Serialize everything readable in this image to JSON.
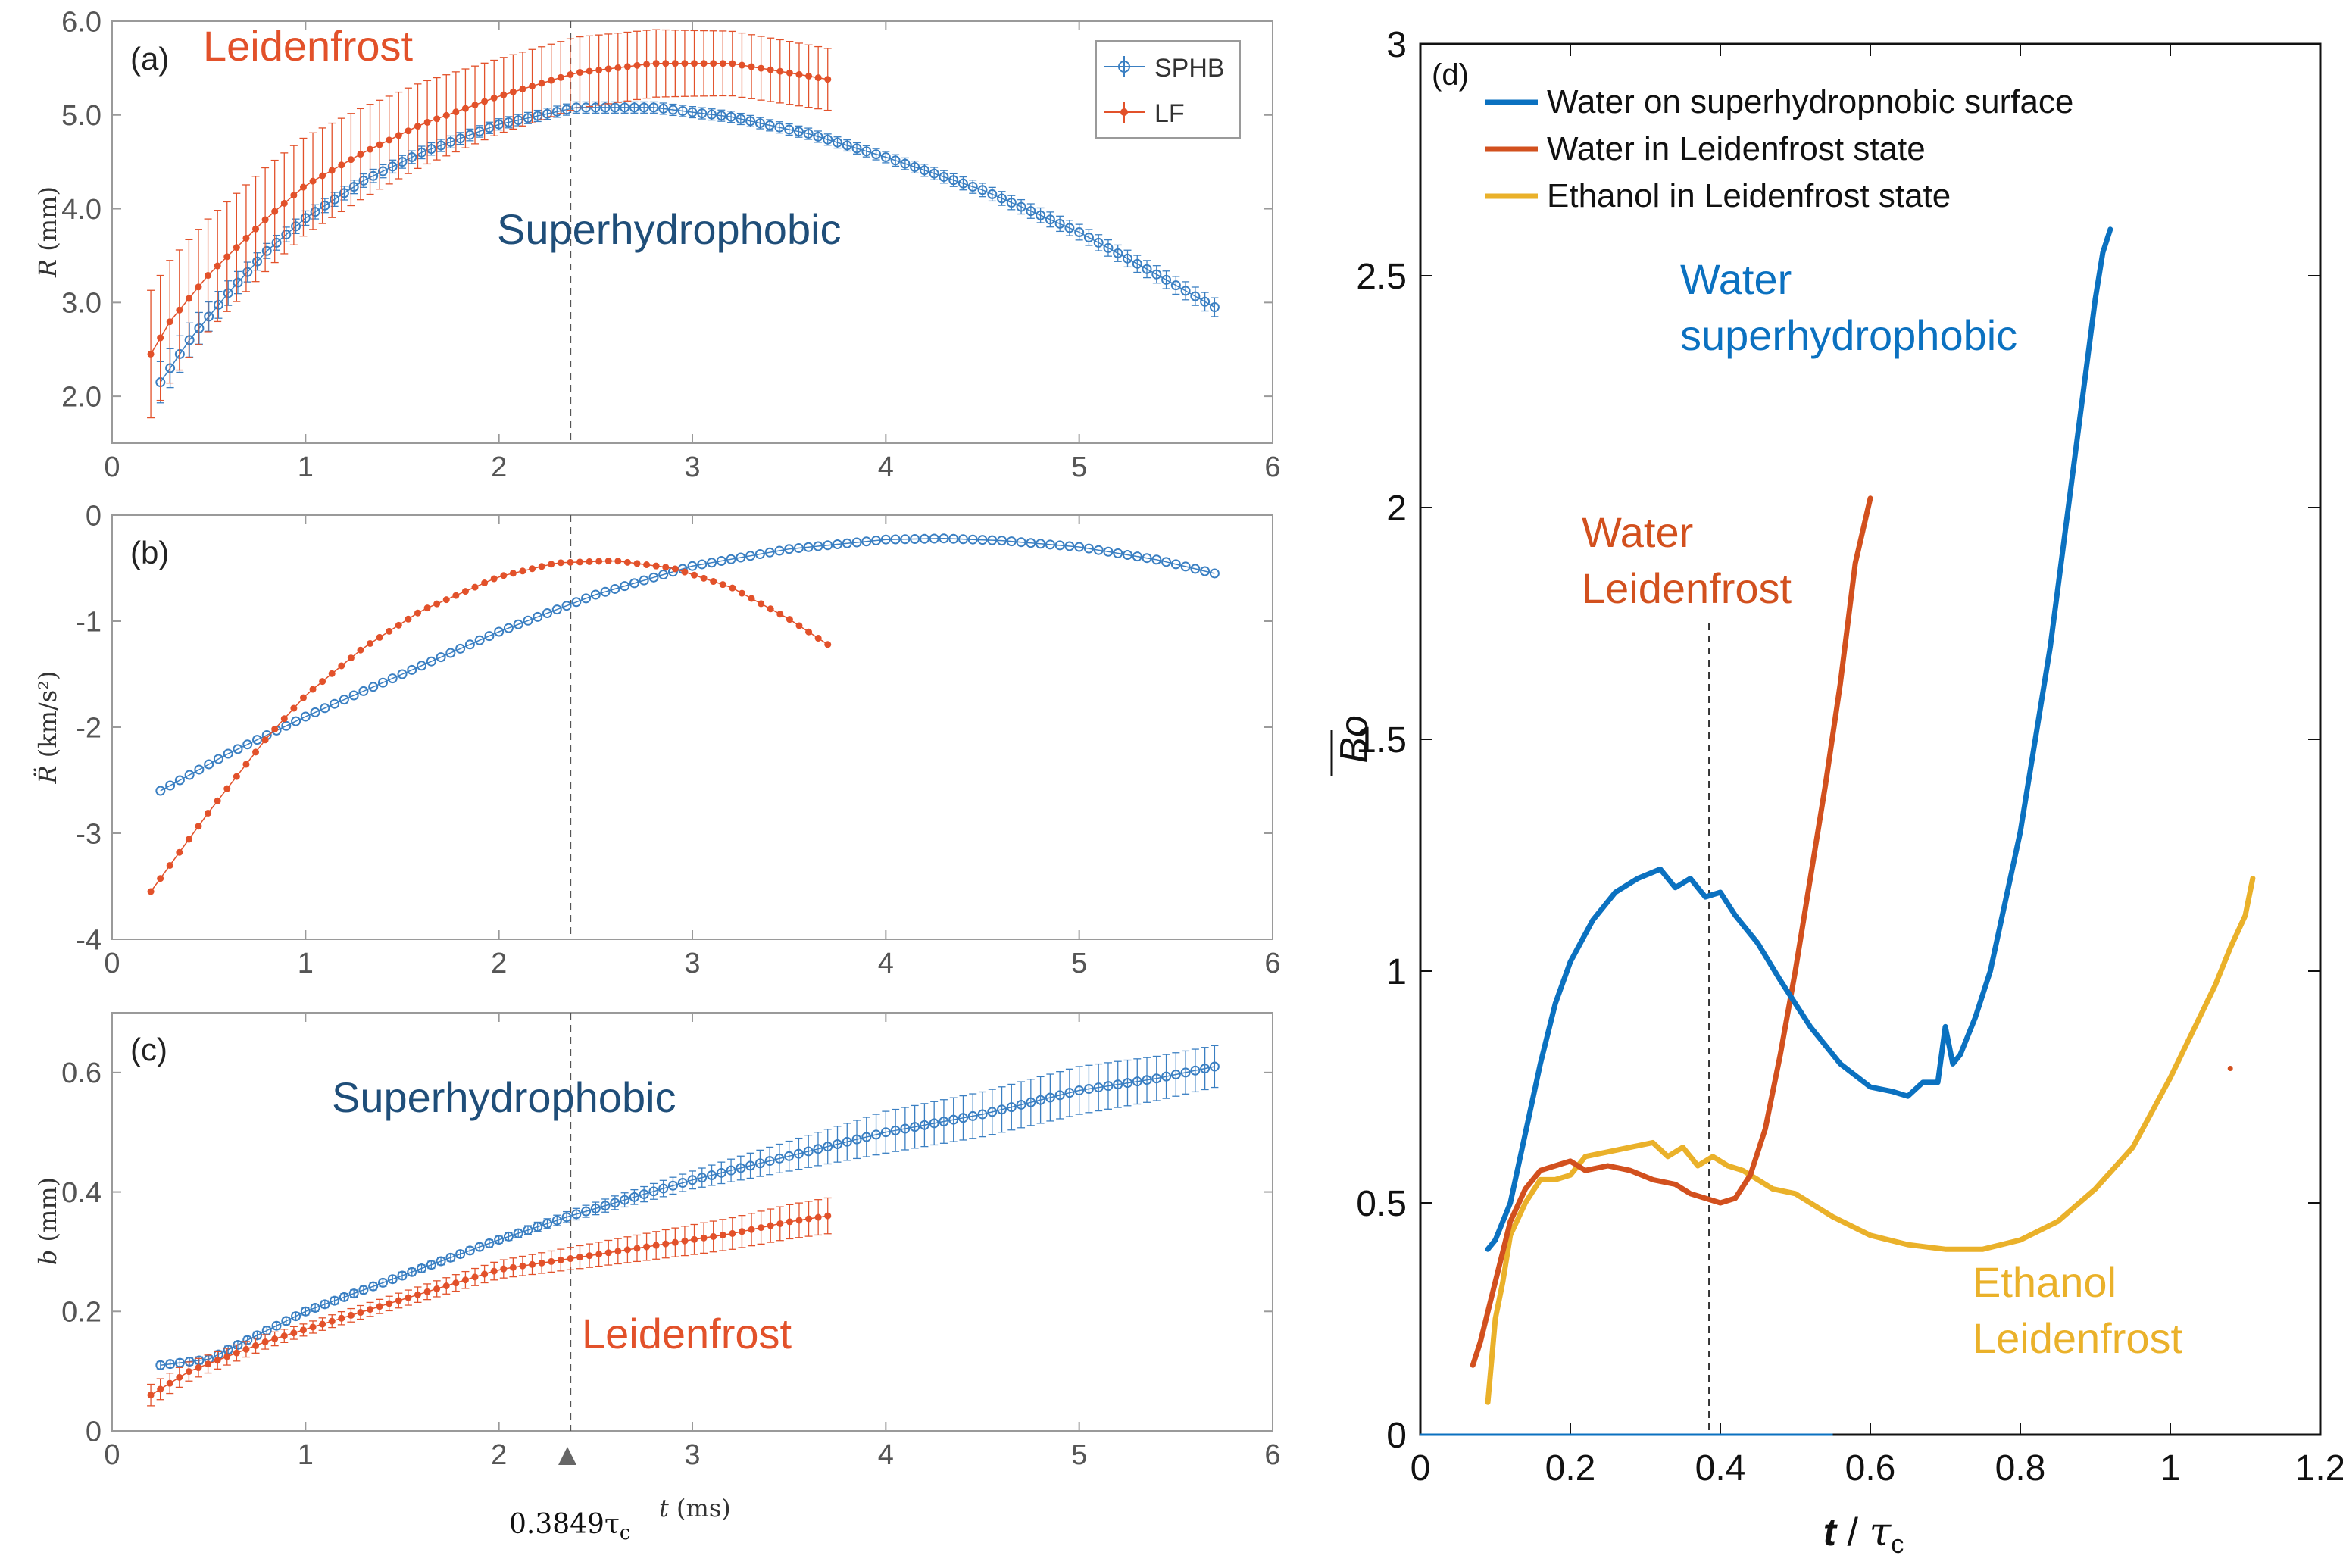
{
  "colors": {
    "sphb_blue": "#3a7fc2",
    "lf_orange": "#e2512a",
    "annot_blue": "#1f4e79",
    "annot_orange": "#e2512a",
    "d_blue": "#0b71c0",
    "d_orange": "#d2501e",
    "d_yellow": "#eab12a",
    "axis": "#9a9a9a",
    "tick_text": "#555555"
  },
  "chart_data": [
    {
      "id": "a",
      "type": "scatter",
      "panel_label": "(a)",
      "xlabel": "",
      "ylabel_var": "R",
      "ylabel_unit": " (mm)",
      "xlim": [
        0,
        6
      ],
      "ylim": [
        1.5,
        6.0
      ],
      "xticks": [
        0,
        1,
        2,
        3,
        4,
        5,
        6
      ],
      "yticks": [
        2.0,
        3.0,
        4.0,
        5.0,
        6.0
      ],
      "ytick_labels": [
        "2.0",
        "3.0",
        "4.0",
        "5.0",
        "6.0"
      ],
      "vline_x": 2.37,
      "legend": [
        "SPHB",
        "LF"
      ],
      "annotations": [
        "Leidenfrost",
        "Superhydrophobic"
      ],
      "series": [
        {
          "name": "SPHB",
          "marker": "circle",
          "x_start": 0.25,
          "x_end": 5.7,
          "n": 110,
          "anchors_x": [
            0.25,
            0.4,
            0.6,
            0.8,
            1.0,
            1.3,
            1.6,
            2.0,
            2.4,
            2.8,
            3.2,
            3.6,
            4.0,
            4.5,
            5.0,
            5.4,
            5.7
          ],
          "anchors_y": [
            2.15,
            2.6,
            3.1,
            3.55,
            3.9,
            4.3,
            4.6,
            4.9,
            5.08,
            5.08,
            4.98,
            4.8,
            4.55,
            4.2,
            3.75,
            3.3,
            2.95
          ],
          "err_anchors_x": [
            0.25,
            0.8,
            2.0,
            4.0,
            5.7
          ],
          "err_anchors": [
            0.22,
            0.08,
            0.06,
            0.06,
            0.1
          ]
        },
        {
          "name": "LF",
          "marker": "asterisk",
          "x_start": 0.2,
          "x_end": 3.7,
          "n": 72,
          "anchors_x": [
            0.2,
            0.3,
            0.5,
            0.8,
            1.0,
            1.3,
            1.6,
            2.0,
            2.4,
            2.8,
            3.2,
            3.5,
            3.7
          ],
          "anchors_y": [
            2.45,
            2.8,
            3.3,
            3.9,
            4.25,
            4.6,
            4.9,
            5.2,
            5.45,
            5.55,
            5.55,
            5.45,
            5.38
          ],
          "err_anchors_x": [
            0.2,
            0.5,
            1.0,
            2.0,
            3.0,
            3.7
          ],
          "err_anchors": [
            0.68,
            0.6,
            0.52,
            0.4,
            0.35,
            0.33
          ]
        }
      ]
    },
    {
      "id": "b",
      "type": "scatter",
      "panel_label": "(b)",
      "xlabel": "",
      "ylabel_var": "R̈",
      "ylabel_unit": " (km/s²)",
      "xlim": [
        0,
        6
      ],
      "ylim": [
        -4,
        0
      ],
      "xticks": [
        0,
        1,
        2,
        3,
        4,
        5,
        6
      ],
      "yticks": [
        -4,
        -3,
        -2,
        -1,
        0
      ],
      "ytick_labels": [
        "-4",
        "-3",
        "-2",
        "-1",
        "0"
      ],
      "vline_x": 2.37,
      "series": [
        {
          "name": "SPHB",
          "marker": "circle",
          "x_start": 0.25,
          "x_end": 5.7,
          "n": 110,
          "anchors_x": [
            0.25,
            0.6,
            1.0,
            1.5,
            2.0,
            2.5,
            3.0,
            3.5,
            4.0,
            4.3,
            4.6,
            5.0,
            5.4,
            5.7
          ],
          "anchors_y": [
            -2.6,
            -2.25,
            -1.9,
            -1.5,
            -1.1,
            -0.75,
            -0.48,
            -0.32,
            -0.23,
            -0.22,
            -0.24,
            -0.3,
            -0.42,
            -0.55
          ]
        },
        {
          "name": "LF",
          "marker": "asterisk",
          "x_start": 0.2,
          "x_end": 3.7,
          "n": 72,
          "anchors_x": [
            0.2,
            0.5,
            0.8,
            1.0,
            1.3,
            1.6,
            2.0,
            2.3,
            2.6,
            2.9,
            3.2,
            3.5,
            3.7
          ],
          "anchors_y": [
            -3.55,
            -2.8,
            -2.1,
            -1.7,
            -1.25,
            -0.9,
            -0.58,
            -0.45,
            -0.43,
            -0.5,
            -0.68,
            -0.98,
            -1.22
          ]
        }
      ]
    },
    {
      "id": "c",
      "type": "scatter",
      "panel_label": "(c)",
      "xlabel_var": "t",
      "xlabel_unit": " (ms)",
      "ylabel_var": "b",
      "ylabel_unit": " (mm)",
      "xlim": [
        0,
        6
      ],
      "ylim": [
        0,
        0.7
      ],
      "xticks": [
        0,
        1,
        2,
        3,
        4,
        5,
        6
      ],
      "yticks": [
        0,
        0.2,
        0.4,
        0.6
      ],
      "ytick_labels": [
        "0",
        "0.2",
        "0.4",
        "0.6"
      ],
      "vline_x": 2.37,
      "vline_label": "0.3849τ",
      "vline_label_sub": "c",
      "annotations": [
        "Superhydrophobic",
        "Leidenfrost"
      ],
      "series": [
        {
          "name": "SPHB",
          "marker": "circle",
          "x_start": 0.25,
          "x_end": 5.7,
          "n": 110,
          "anchors_x": [
            0.25,
            0.5,
            1.0,
            1.5,
            2.0,
            2.37,
            3.0,
            3.5,
            4.0,
            4.5,
            5.0,
            5.4,
            5.7
          ],
          "anchors_y": [
            0.11,
            0.12,
            0.2,
            0.26,
            0.32,
            0.36,
            0.42,
            0.46,
            0.5,
            0.53,
            0.57,
            0.59,
            0.61
          ],
          "err_anchors_x": [
            0.25,
            2.0,
            3.0,
            4.0,
            5.0,
            5.7
          ],
          "err_anchors": [
            0.006,
            0.006,
            0.015,
            0.035,
            0.04,
            0.035
          ]
        },
        {
          "name": "LF",
          "marker": "asterisk",
          "x_start": 0.2,
          "x_end": 3.7,
          "n": 72,
          "anchors_x": [
            0.2,
            0.4,
            0.8,
            1.2,
            1.6,
            2.0,
            2.4,
            2.8,
            3.2,
            3.5,
            3.7
          ],
          "anchors_y": [
            0.06,
            0.1,
            0.15,
            0.19,
            0.23,
            0.27,
            0.29,
            0.31,
            0.33,
            0.35,
            0.36
          ],
          "err_anchors_x": [
            0.2,
            1.0,
            2.0,
            3.0,
            3.7
          ],
          "err_anchors": [
            0.018,
            0.01,
            0.015,
            0.025,
            0.03
          ]
        }
      ]
    },
    {
      "id": "d",
      "type": "line",
      "panel_label": "(d)",
      "xlabel_var": "t",
      "xlabel_mid": " / ",
      "xlabel_tau": "τ",
      "xlabel_sub": "c",
      "ylabel": "Bo",
      "xlim": [
        0,
        1.2
      ],
      "ylim": [
        0,
        3
      ],
      "xticks": [
        0,
        0.2,
        0.4,
        0.6,
        0.8,
        1,
        1.2
      ],
      "xtick_labels": [
        "0",
        "0.2",
        "0.4",
        "0.6",
        "0.8",
        "1",
        "1.2"
      ],
      "yticks": [
        0,
        0.5,
        1,
        1.5,
        2,
        2.5,
        3
      ],
      "ytick_labels": [
        "0",
        "0.5",
        "1",
        "1.5",
        "2",
        "2.5",
        "3"
      ],
      "vline_x": 0.3849,
      "legend": [
        "Water on superhydropnobic surface",
        "Water in Leidenfrost state",
        "Ethanol in Leidenfrost state"
      ],
      "annotations": [
        [
          "Water",
          "superhydrophobic"
        ],
        [
          "Water",
          "Leidenfrost"
        ],
        [
          "Ethanol",
          "Leidenfrost"
        ]
      ],
      "series": [
        {
          "name": "Water on superhydropnobic surface",
          "x": [
            0.09,
            0.1,
            0.12,
            0.14,
            0.16,
            0.18,
            0.2,
            0.23,
            0.26,
            0.29,
            0.32,
            0.34,
            0.36,
            0.38,
            0.4,
            0.42,
            0.45,
            0.48,
            0.52,
            0.56,
            0.6,
            0.63,
            0.65,
            0.67,
            0.69,
            0.7,
            0.71,
            0.72,
            0.74,
            0.76,
            0.78,
            0.8,
            0.82,
            0.84,
            0.86,
            0.88,
            0.9,
            0.91,
            0.92
          ],
          "y": [
            0.4,
            0.42,
            0.5,
            0.65,
            0.8,
            0.93,
            1.02,
            1.11,
            1.17,
            1.2,
            1.22,
            1.18,
            1.2,
            1.16,
            1.17,
            1.12,
            1.06,
            0.98,
            0.88,
            0.8,
            0.75,
            0.74,
            0.73,
            0.76,
            0.76,
            0.88,
            0.8,
            0.82,
            0.9,
            1.0,
            1.15,
            1.3,
            1.5,
            1.7,
            1.95,
            2.2,
            2.45,
            2.55,
            2.6
          ]
        },
        {
          "name": "Water in Leidenfrost state",
          "x": [
            0.07,
            0.08,
            0.1,
            0.12,
            0.14,
            0.16,
            0.18,
            0.2,
            0.22,
            0.25,
            0.28,
            0.31,
            0.34,
            0.36,
            0.38,
            0.4,
            0.42,
            0.44,
            0.46,
            0.48,
            0.5,
            0.52,
            0.54,
            0.56,
            0.57,
            0.58,
            0.59,
            0.6
          ],
          "y": [
            0.15,
            0.2,
            0.33,
            0.46,
            0.53,
            0.57,
            0.58,
            0.59,
            0.57,
            0.58,
            0.57,
            0.55,
            0.54,
            0.52,
            0.51,
            0.5,
            0.51,
            0.56,
            0.66,
            0.82,
            1.0,
            1.2,
            1.4,
            1.62,
            1.75,
            1.88,
            1.95,
            2.02
          ]
        },
        {
          "name": "Ethanol in Leidenfrost state",
          "x": [
            0.09,
            0.1,
            0.11,
            0.12,
            0.14,
            0.16,
            0.18,
            0.2,
            0.22,
            0.25,
            0.28,
            0.31,
            0.33,
            0.35,
            0.37,
            0.39,
            0.41,
            0.43,
            0.45,
            0.47,
            0.5,
            0.55,
            0.6,
            0.65,
            0.7,
            0.75,
            0.8,
            0.85,
            0.9,
            0.95,
            1.0,
            1.03,
            1.06,
            1.08,
            1.1,
            1.11
          ],
          "y": [
            0.07,
            0.25,
            0.33,
            0.43,
            0.5,
            0.55,
            0.55,
            0.56,
            0.6,
            0.61,
            0.62,
            0.63,
            0.6,
            0.62,
            0.58,
            0.6,
            0.58,
            0.57,
            0.55,
            0.53,
            0.52,
            0.47,
            0.43,
            0.41,
            0.4,
            0.4,
            0.42,
            0.46,
            0.53,
            0.62,
            0.77,
            0.87,
            0.97,
            1.05,
            1.12,
            1.2
          ]
        }
      ],
      "outlier_point": [
        1.08,
        0.79
      ]
    }
  ]
}
